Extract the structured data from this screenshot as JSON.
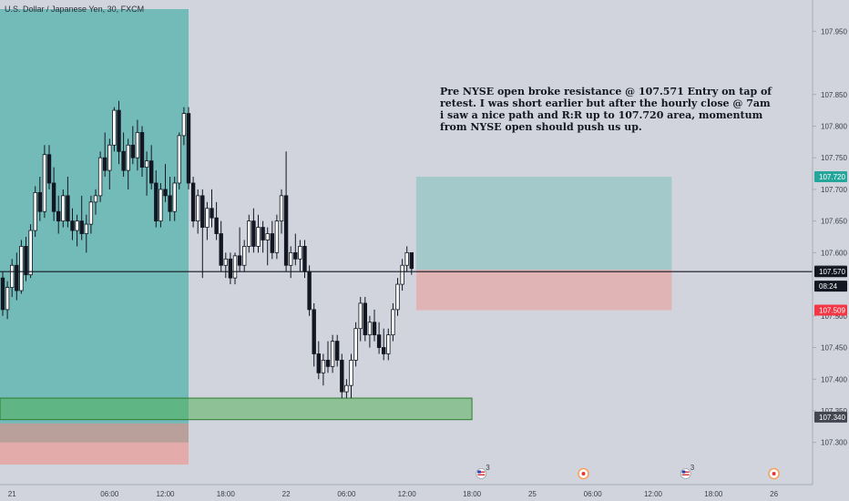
{
  "header": {
    "symbol_title": "U.S. Dollar / Japanese Yen, 30, FXCM"
  },
  "annotation": {
    "lines": [
      "Pre NYSE open broke resistance @ 107.571 Entry on tap of",
      "retest. I was short earlier but after the hourly close @ 7am",
      "i saw a nice path and R:R up to 107.720 area, momentum",
      "from NYSE open should push us up."
    ]
  },
  "price_axis": {
    "ticks": [
      "107.950",
      "107.850",
      "107.800",
      "107.750",
      "107.700",
      "107.650",
      "107.600",
      "107.500",
      "107.450",
      "107.400",
      "107.350",
      "107.300"
    ]
  },
  "price_tags": [
    {
      "value": 107.72,
      "label": "107.720",
      "color": "#26a69a"
    },
    {
      "value": 107.571,
      "label": "107.571",
      "color": "#434651"
    },
    {
      "value": 107.57,
      "label": "107.570",
      "color": "#131722"
    },
    {
      "value": 107.547,
      "label": "08:24",
      "color": "#131722"
    },
    {
      "value": 107.509,
      "label": "107.509",
      "color": "#f23645"
    },
    {
      "value": 107.34,
      "label": "107.340",
      "color": "#434651"
    }
  ],
  "time_axis": {
    "labels": [
      {
        "slot": 2,
        "text": "21"
      },
      {
        "slot": 23,
        "text": "06:00"
      },
      {
        "slot": 35,
        "text": "12:00"
      },
      {
        "slot": 48,
        "text": "18:00"
      },
      {
        "slot": 61,
        "text": "22"
      },
      {
        "slot": 74,
        "text": "06:00"
      },
      {
        "slot": 87,
        "text": "12:00"
      },
      {
        "slot": 101,
        "text": "18:00"
      },
      {
        "slot": 114,
        "text": "25"
      },
      {
        "slot": 127,
        "text": "06:00"
      },
      {
        "slot": 140,
        "text": "12:00"
      },
      {
        "slot": 153,
        "text": "18:00"
      },
      {
        "slot": 166,
        "text": "26"
      }
    ]
  },
  "events": [
    {
      "slot": 103,
      "kind": "us-flag",
      "count": "3"
    },
    {
      "slot": 125,
      "kind": "circle"
    },
    {
      "slot": 147,
      "kind": "us-flag",
      "count": "3"
    },
    {
      "slot": 166,
      "kind": "circle"
    },
    {
      "slot": 177,
      "kind": "circle"
    }
  ],
  "zones": [
    {
      "name": "left-profit-zone",
      "slot0": -1,
      "slot1": 40,
      "top": 107.985,
      "bottom": 107.3,
      "color": "#26a69a",
      "opacity": 0.55
    },
    {
      "name": "left-loss-zone",
      "slot0": -1,
      "slot1": 40,
      "top": 107.33,
      "bottom": 107.265,
      "color": "#f28b82",
      "opacity": 0.55
    },
    {
      "name": "demand-zone",
      "slot0": -1,
      "slot1": 101,
      "top": 107.37,
      "bottom": 107.336,
      "color": "#4caf50",
      "opacity": 0.5
    },
    {
      "name": "long-target-zone",
      "slot0": 89,
      "slot1": 144,
      "top": 107.72,
      "bottom": 107.573,
      "color": "#7fbfbe",
      "opacity": 0.55
    },
    {
      "name": "long-stop-zone",
      "slot0": 89,
      "slot1": 144,
      "top": 107.573,
      "bottom": 107.509,
      "color": "#f28b82",
      "opacity": 0.45
    }
  ],
  "horizontal_line": {
    "value": 107.57,
    "color": "#131722"
  },
  "chart_data": {
    "type": "candlestick",
    "title": "U.S. Dollar / Japanese Yen, 30, FXCM",
    "timeframe": "30",
    "ylim": [
      107.265,
      107.985
    ],
    "x_time_labels": [
      "21",
      "06:00",
      "12:00",
      "18:00",
      "22",
      "06:00",
      "12:00",
      "18:00",
      "25",
      "06:00",
      "12:00",
      "18:00",
      "26"
    ],
    "candles": [
      {
        "o": 107.56,
        "h": 107.57,
        "l": 107.5,
        "c": 107.51
      },
      {
        "o": 107.51,
        "h": 107.555,
        "l": 107.495,
        "c": 107.545
      },
      {
        "o": 107.545,
        "h": 107.59,
        "l": 107.53,
        "c": 107.58
      },
      {
        "o": 107.58,
        "h": 107.6,
        "l": 107.525,
        "c": 107.54
      },
      {
        "o": 107.54,
        "h": 107.62,
        "l": 107.535,
        "c": 107.61
      },
      {
        "o": 107.61,
        "h": 107.625,
        "l": 107.555,
        "c": 107.565
      },
      {
        "o": 107.565,
        "h": 107.645,
        "l": 107.56,
        "c": 107.635
      },
      {
        "o": 107.635,
        "h": 107.705,
        "l": 107.625,
        "c": 107.695
      },
      {
        "o": 107.695,
        "h": 107.72,
        "l": 107.65,
        "c": 107.665
      },
      {
        "o": 107.665,
        "h": 107.77,
        "l": 107.655,
        "c": 107.755
      },
      {
        "o": 107.755,
        "h": 107.77,
        "l": 107.7,
        "c": 107.71
      },
      {
        "o": 107.71,
        "h": 107.735,
        "l": 107.65,
        "c": 107.665
      },
      {
        "o": 107.665,
        "h": 107.69,
        "l": 107.63,
        "c": 107.65
      },
      {
        "o": 107.65,
        "h": 107.7,
        "l": 107.64,
        "c": 107.69
      },
      {
        "o": 107.69,
        "h": 107.72,
        "l": 107.64,
        "c": 107.65
      },
      {
        "o": 107.65,
        "h": 107.67,
        "l": 107.62,
        "c": 107.635
      },
      {
        "o": 107.635,
        "h": 107.66,
        "l": 107.61,
        "c": 107.65
      },
      {
        "o": 107.65,
        "h": 107.69,
        "l": 107.62,
        "c": 107.63
      },
      {
        "o": 107.63,
        "h": 107.66,
        "l": 107.6,
        "c": 107.645
      },
      {
        "o": 107.645,
        "h": 107.69,
        "l": 107.63,
        "c": 107.68
      },
      {
        "o": 107.68,
        "h": 107.7,
        "l": 107.66,
        "c": 107.69
      },
      {
        "o": 107.69,
        "h": 107.76,
        "l": 107.68,
        "c": 107.75
      },
      {
        "o": 107.75,
        "h": 107.79,
        "l": 107.72,
        "c": 107.73
      },
      {
        "o": 107.73,
        "h": 107.78,
        "l": 107.7,
        "c": 107.77
      },
      {
        "o": 107.77,
        "h": 107.83,
        "l": 107.76,
        "c": 107.825
      },
      {
        "o": 107.825,
        "h": 107.84,
        "l": 107.74,
        "c": 107.76
      },
      {
        "o": 107.76,
        "h": 107.79,
        "l": 107.72,
        "c": 107.73
      },
      {
        "o": 107.73,
        "h": 107.78,
        "l": 107.7,
        "c": 107.77
      },
      {
        "o": 107.77,
        "h": 107.8,
        "l": 107.74,
        "c": 107.75
      },
      {
        "o": 107.75,
        "h": 107.81,
        "l": 107.73,
        "c": 107.79
      },
      {
        "o": 107.79,
        "h": 107.8,
        "l": 107.72,
        "c": 107.735
      },
      {
        "o": 107.735,
        "h": 107.76,
        "l": 107.69,
        "c": 107.745
      },
      {
        "o": 107.745,
        "h": 107.77,
        "l": 107.7,
        "c": 107.71
      },
      {
        "o": 107.71,
        "h": 107.73,
        "l": 107.64,
        "c": 107.65
      },
      {
        "o": 107.65,
        "h": 107.71,
        "l": 107.64,
        "c": 107.7
      },
      {
        "o": 107.7,
        "h": 107.74,
        "l": 107.68,
        "c": 107.69
      },
      {
        "o": 107.69,
        "h": 107.72,
        "l": 107.65,
        "c": 107.665
      },
      {
        "o": 107.665,
        "h": 107.72,
        "l": 107.65,
        "c": 107.71
      },
      {
        "o": 107.71,
        "h": 107.79,
        "l": 107.7,
        "c": 107.785
      },
      {
        "o": 107.785,
        "h": 107.83,
        "l": 107.77,
        "c": 107.82
      },
      {
        "o": 107.82,
        "h": 107.83,
        "l": 107.7,
        "c": 107.71
      },
      {
        "o": 107.71,
        "h": 107.72,
        "l": 107.64,
        "c": 107.65
      },
      {
        "o": 107.65,
        "h": 107.7,
        "l": 107.63,
        "c": 107.69
      },
      {
        "o": 107.69,
        "h": 107.7,
        "l": 107.56,
        "c": 107.64
      },
      {
        "o": 107.64,
        "h": 107.68,
        "l": 107.62,
        "c": 107.67
      },
      {
        "o": 107.67,
        "h": 107.7,
        "l": 107.64,
        "c": 107.655
      },
      {
        "o": 107.655,
        "h": 107.68,
        "l": 107.62,
        "c": 107.63
      },
      {
        "o": 107.63,
        "h": 107.65,
        "l": 107.57,
        "c": 107.58
      },
      {
        "o": 107.58,
        "h": 107.6,
        "l": 107.56,
        "c": 107.59
      },
      {
        "o": 107.59,
        "h": 107.6,
        "l": 107.55,
        "c": 107.56
      },
      {
        "o": 107.56,
        "h": 107.6,
        "l": 107.55,
        "c": 107.595
      },
      {
        "o": 107.595,
        "h": 107.64,
        "l": 107.57,
        "c": 107.58
      },
      {
        "o": 107.58,
        "h": 107.62,
        "l": 107.57,
        "c": 107.61
      },
      {
        "o": 107.61,
        "h": 107.66,
        "l": 107.6,
        "c": 107.65
      },
      {
        "o": 107.65,
        "h": 107.67,
        "l": 107.6,
        "c": 107.61
      },
      {
        "o": 107.61,
        "h": 107.66,
        "l": 107.6,
        "c": 107.64
      },
      {
        "o": 107.64,
        "h": 107.65,
        "l": 107.6,
        "c": 107.62
      },
      {
        "o": 107.62,
        "h": 107.64,
        "l": 107.58,
        "c": 107.63
      },
      {
        "o": 107.63,
        "h": 107.65,
        "l": 107.59,
        "c": 107.6
      },
      {
        "o": 107.6,
        "h": 107.66,
        "l": 107.59,
        "c": 107.65
      },
      {
        "o": 107.65,
        "h": 107.7,
        "l": 107.63,
        "c": 107.69
      },
      {
        "o": 107.69,
        "h": 107.76,
        "l": 107.57,
        "c": 107.58
      },
      {
        "o": 107.58,
        "h": 107.61,
        "l": 107.56,
        "c": 107.6
      },
      {
        "o": 107.6,
        "h": 107.63,
        "l": 107.58,
        "c": 107.59
      },
      {
        "o": 107.59,
        "h": 107.62,
        "l": 107.57,
        "c": 107.61
      },
      {
        "o": 107.61,
        "h": 107.62,
        "l": 107.56,
        "c": 107.57
      },
      {
        "o": 107.57,
        "h": 107.58,
        "l": 107.5,
        "c": 107.51
      },
      {
        "o": 107.51,
        "h": 107.52,
        "l": 107.42,
        "c": 107.44
      },
      {
        "o": 107.44,
        "h": 107.46,
        "l": 107.4,
        "c": 107.41
      },
      {
        "o": 107.41,
        "h": 107.44,
        "l": 107.39,
        "c": 107.43
      },
      {
        "o": 107.43,
        "h": 107.46,
        "l": 107.41,
        "c": 107.42
      },
      {
        "o": 107.42,
        "h": 107.47,
        "l": 107.41,
        "c": 107.46
      },
      {
        "o": 107.46,
        "h": 107.47,
        "l": 107.42,
        "c": 107.43
      },
      {
        "o": 107.43,
        "h": 107.44,
        "l": 107.37,
        "c": 107.38
      },
      {
        "o": 107.38,
        "h": 107.4,
        "l": 107.37,
        "c": 107.39
      },
      {
        "o": 107.39,
        "h": 107.44,
        "l": 107.37,
        "c": 107.43
      },
      {
        "o": 107.43,
        "h": 107.49,
        "l": 107.42,
        "c": 107.48
      },
      {
        "o": 107.48,
        "h": 107.53,
        "l": 107.46,
        "c": 107.52
      },
      {
        "o": 107.52,
        "h": 107.53,
        "l": 107.46,
        "c": 107.47
      },
      {
        "o": 107.47,
        "h": 107.5,
        "l": 107.45,
        "c": 107.49
      },
      {
        "o": 107.49,
        "h": 107.51,
        "l": 107.46,
        "c": 107.47
      },
      {
        "o": 107.47,
        "h": 107.49,
        "l": 107.44,
        "c": 107.45
      },
      {
        "o": 107.45,
        "h": 107.48,
        "l": 107.43,
        "c": 107.44
      },
      {
        "o": 107.44,
        "h": 107.48,
        "l": 107.43,
        "c": 107.47
      },
      {
        "o": 107.47,
        "h": 107.52,
        "l": 107.46,
        "c": 107.51
      },
      {
        "o": 107.51,
        "h": 107.56,
        "l": 107.5,
        "c": 107.55
      },
      {
        "o": 107.55,
        "h": 107.59,
        "l": 107.54,
        "c": 107.58
      },
      {
        "o": 107.58,
        "h": 107.61,
        "l": 107.57,
        "c": 107.6
      },
      {
        "o": 107.6,
        "h": 107.6,
        "l": 107.565,
        "c": 107.575
      }
    ]
  }
}
